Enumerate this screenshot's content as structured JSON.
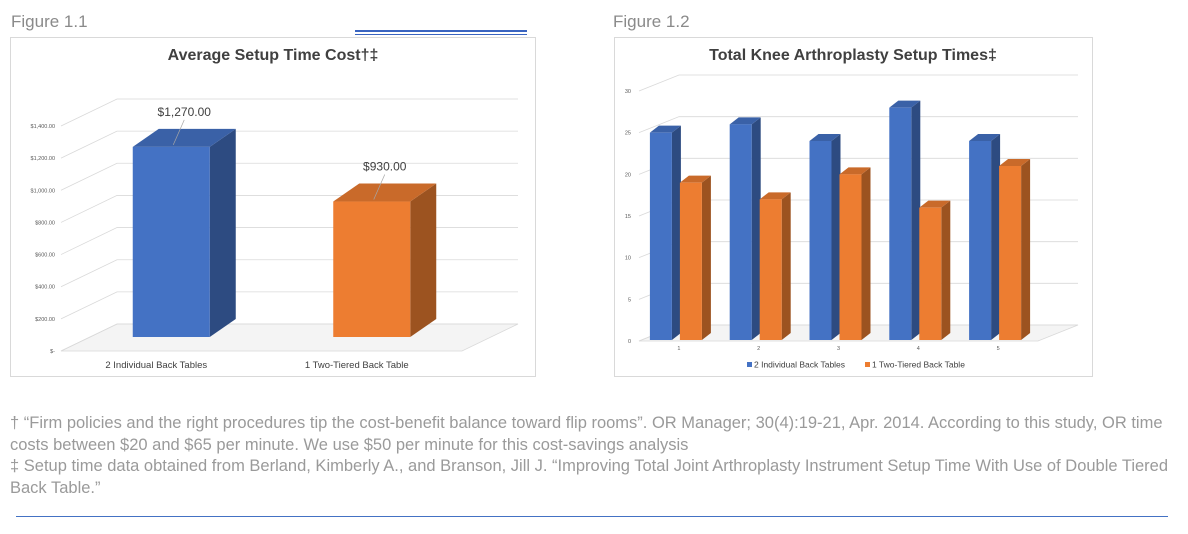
{
  "figure1": {
    "label": "Figure 1.1",
    "chart_data": {
      "type": "bar",
      "title": "Average Setup Time Cost†‡",
      "categories": [
        "2 Individual Back Tables",
        "1 Two-Tiered Back Table"
      ],
      "values": [
        1270,
        930
      ],
      "data_labels": [
        "$1,270.00",
        "$930.00"
      ],
      "colors": [
        "#4472c4",
        "#ed7d31"
      ],
      "ylim": [
        0,
        1400
      ],
      "yticks": [
        0,
        200,
        400,
        600,
        800,
        1000,
        1200,
        1400
      ],
      "ytick_labels": [
        "$-",
        "$200.00",
        "$400.00",
        "$600.00",
        "$800.00",
        "$1,000.00",
        "$1,200.00",
        "$1,400.00"
      ],
      "grid": true,
      "legend": "none",
      "style": "3d-column"
    }
  },
  "figure2": {
    "label": "Figure 1.2",
    "chart_data": {
      "type": "bar",
      "title": "Total Knee Arthroplasty Setup Times‡",
      "categories": [
        "1",
        "2",
        "3",
        "4",
        "5"
      ],
      "series": [
        {
          "name": "2 Individual Back Tables",
          "values": [
            25,
            26,
            24,
            28,
            24
          ],
          "color": "#4472c4"
        },
        {
          "name": "1 Two-Tiered Back Table",
          "values": [
            19,
            17,
            20,
            16,
            21
          ],
          "color": "#ed7d31"
        }
      ],
      "ylim": [
        0,
        30
      ],
      "yticks": [
        0,
        5,
        10,
        15,
        20,
        25,
        30
      ],
      "grid": true,
      "legend": "bottom",
      "style": "3d-column"
    }
  },
  "footnotes": {
    "line1": "† “Firm policies and the right procedures tip the cost-benefit balance toward flip rooms”. OR Manager; 30(4):19-21, Apr. 2014. According to this study, OR time costs between $20 and $65 per minute. We use $50 per minute for this cost-savings analysis",
    "line2": "‡ Setup time data obtained from Berland, Kimberly A., and Branson, Jill J. “Improving Total Joint Arthroplasty Instrument Setup Time With Use of Double Tiered Back Table.”"
  }
}
